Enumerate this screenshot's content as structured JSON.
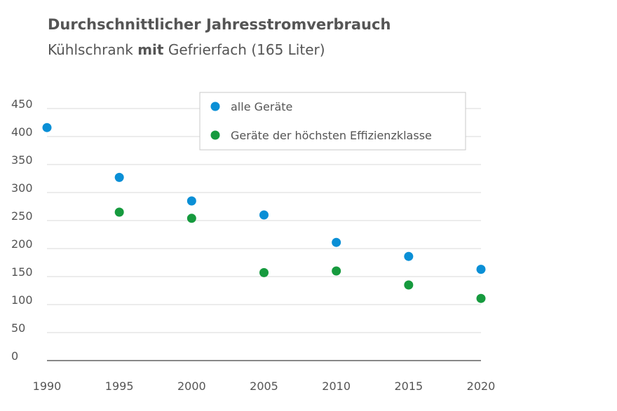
{
  "chart_data": {
    "type": "scatter",
    "title": "Durchschnittlicher Jahresstromverbrauch",
    "subtitle": {
      "before": "Kühlschrank ",
      "bold": "mit",
      "after": " Gefrierfach (165 Liter)"
    },
    "x": [
      1990,
      1995,
      2000,
      2005,
      2010,
      2015,
      2020
    ],
    "xlim": [
      1990,
      2020
    ],
    "ylim": [
      0,
      450
    ],
    "y_ticks": [
      0,
      50,
      100,
      150,
      200,
      250,
      300,
      350,
      400,
      450
    ],
    "grid": true,
    "legend_position": "top-right",
    "series": [
      {
        "name": "alle Geräte",
        "color": "#0a8fd6",
        "points": [
          [
            1990,
            416
          ],
          [
            1995,
            327
          ],
          [
            2000,
            285
          ],
          [
            2005,
            260
          ],
          [
            2010,
            211
          ],
          [
            2015,
            186
          ],
          [
            2020,
            163
          ]
        ]
      },
      {
        "name": "Geräte der höchsten Effizienzklasse",
        "color": "#169a3e",
        "points": [
          [
            1995,
            265
          ],
          [
            2000,
            254
          ],
          [
            2005,
            157
          ],
          [
            2010,
            160
          ],
          [
            2015,
            135
          ],
          [
            2020,
            111
          ]
        ]
      }
    ]
  }
}
